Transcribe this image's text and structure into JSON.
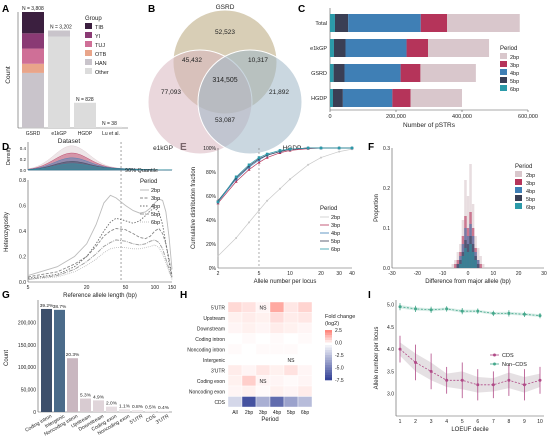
{
  "colors": {
    "tib": "#3b1f3f",
    "yi": "#8a3a74",
    "tuj": "#cf6f97",
    "otb": "#e9a58a",
    "han": "#c9c4cb",
    "other": "#dcdcdc",
    "p2": "#d9c7cc",
    "p3": "#b5345a",
    "p4": "#3f7fb5",
    "p5": "#3a3f55",
    "p6": "#2b9aa9",
    "venn_gsrd": "#b8a67a",
    "venn_e1kgp": "#d9b7bf",
    "venn_hgdp": "#9fb6c6",
    "cds": "#b04a87",
    "noncds": "#46a88c"
  },
  "panels": {
    "A": "A",
    "B": "B",
    "C": "C",
    "D": "D",
    "E": "E",
    "F": "F",
    "G": "G",
    "H": "H",
    "I": "I"
  },
  "chart_data": [
    {
      "panel": "A",
      "type": "bar",
      "categories": [
        "GSRD",
        "e1kGP",
        "HGDP",
        "Lu et al."
      ],
      "totals": [
        3808,
        3202,
        828,
        38
      ],
      "total_labels": [
        "N = 3,808",
        "N = 3,202",
        "N = 828",
        "N = 38"
      ],
      "series": [
        {
          "name": "TIB",
          "values": [
            700,
            0,
            0,
            0
          ]
        },
        {
          "name": "YI",
          "values": [
            500,
            0,
            0,
            0
          ]
        },
        {
          "name": "TUJ",
          "values": [
            500,
            0,
            0,
            0
          ]
        },
        {
          "name": "OTB",
          "values": [
            300,
            0,
            0,
            0
          ]
        },
        {
          "name": "HAN",
          "values": [
            1800,
            200,
            0,
            0
          ]
        },
        {
          "name": "Other",
          "values": [
            8,
            3002,
            828,
            38
          ]
        }
      ],
      "xlabel": "Dataset",
      "ylabel": "Count",
      "legend_title": "Group"
    },
    {
      "panel": "B",
      "type": "venn",
      "sets": [
        "GSRD",
        "e1kGP",
        "HGDP"
      ],
      "regions": [
        {
          "label": "52,523",
          "value": 52523,
          "sets": [
            "GSRD"
          ]
        },
        {
          "label": "77,093",
          "value": 77093,
          "sets": [
            "e1kGP"
          ]
        },
        {
          "label": "21,892",
          "value": 21892,
          "sets": [
            "HGDP"
          ]
        },
        {
          "label": "45,432",
          "value": 45432,
          "sets": [
            "GSRD",
            "e1kGP"
          ]
        },
        {
          "label": "10,317",
          "value": 10317,
          "sets": [
            "GSRD",
            "HGDP"
          ]
        },
        {
          "label": "53,087",
          "value": 53087,
          "sets": [
            "e1kGP",
            "HGDP"
          ]
        },
        {
          "label": "314,505",
          "value": 314505,
          "sets": [
            "GSRD",
            "e1kGP",
            "HGDP"
          ]
        }
      ]
    },
    {
      "panel": "C",
      "type": "bar",
      "orientation": "horizontal",
      "categories": [
        "Total",
        "e1kGP",
        "GSRD",
        "HGDP"
      ],
      "series": [
        {
          "name": "6bp",
          "values": [
            15000,
            12000,
            11000,
            9000
          ]
        },
        {
          "name": "5bp",
          "values": [
            40000,
            35000,
            33000,
            30000
          ]
        },
        {
          "name": "4bp",
          "values": [
            220000,
            185000,
            170000,
            150000
          ]
        },
        {
          "name": "3bp",
          "values": [
            80000,
            65000,
            60000,
            55000
          ]
        },
        {
          "name": "2bp",
          "values": [
            220000,
            185000,
            168000,
            156000
          ]
        }
      ],
      "xlabel": "Number of pSTRs",
      "xticks": [
        "0",
        "200,000",
        "400,000",
        "600,000"
      ],
      "xlim": [
        0,
        600000
      ],
      "legend_title": "Period"
    },
    {
      "panel": "D",
      "type": "line",
      "x": [
        5,
        10,
        15,
        20,
        25,
        30,
        35,
        40,
        50,
        60,
        70,
        80,
        90,
        100,
        110,
        120,
        130,
        140,
        150
      ],
      "series": [
        {
          "name": "2bp",
          "values": [
            0.05,
            0.12,
            0.2,
            0.3,
            0.45,
            0.62,
            0.68,
            0.66,
            0.6,
            0.56,
            0.54,
            0.55,
            0.58,
            0.62,
            0.65,
            0.64,
            0.55,
            0.35,
            0.1
          ]
        },
        {
          "name": "3bp",
          "values": [
            0.04,
            0.08,
            0.14,
            0.2,
            0.28,
            0.36,
            0.4,
            0.42,
            0.41,
            0.38,
            0.35,
            0.34,
            0.36,
            0.4,
            0.42,
            0.38,
            0.3,
            0.18,
            0.05
          ]
        },
        {
          "name": "4bp",
          "values": [
            0.03,
            0.06,
            0.12,
            0.2,
            0.3,
            0.4,
            0.47,
            0.5,
            0.48,
            0.46,
            0.48,
            0.52,
            0.56,
            0.58,
            0.55,
            0.45,
            0.3,
            0.15,
            0.04
          ]
        },
        {
          "name": "5bp",
          "values": [
            0.02,
            0.05,
            0.1,
            0.16,
            0.22,
            0.28,
            0.31,
            0.33,
            0.32,
            0.3,
            0.29,
            0.3,
            0.32,
            0.33,
            0.31,
            0.26,
            0.18,
            0.1,
            0.03
          ]
        },
        {
          "name": "6bp",
          "values": [
            0.02,
            0.04,
            0.08,
            0.13,
            0.18,
            0.23,
            0.26,
            0.27,
            0.27,
            0.26,
            0.26,
            0.27,
            0.28,
            0.29,
            0.27,
            0.22,
            0.15,
            0.08,
            0.02
          ]
        }
      ],
      "xlabel": "Reference allele length (bp)",
      "ylabel": "Heterozygosity",
      "top_label": "Density",
      "annotation": "90% Quantile",
      "quantile_x": 45,
      "xlim": [
        5,
        150
      ],
      "ylim": [
        0,
        0.8
      ],
      "xticks": [
        "5",
        "20",
        "50",
        "100",
        "150"
      ],
      "yticks": [
        "0.0",
        "0.2",
        "0.4",
        "0.6",
        "0.8"
      ],
      "density_ticks": [
        "0.0",
        "0.2",
        "0.4"
      ],
      "legend_title": "Period"
    },
    {
      "panel": "E",
      "type": "line",
      "x": [
        2,
        3,
        4,
        5,
        6,
        8,
        10,
        15,
        20,
        30,
        40
      ],
      "series": [
        {
          "name": "2bp",
          "values": [
            10,
            25,
            38,
            48,
            56,
            66,
            74,
            86,
            92,
            97,
            99
          ]
        },
        {
          "name": "3bp",
          "values": [
            54,
            72,
            82,
            88,
            92,
            96,
            98,
            99.5,
            100,
            100,
            100
          ]
        },
        {
          "name": "4bp",
          "values": [
            55,
            74,
            84,
            90,
            94,
            97,
            99,
            100,
            100,
            100,
            100
          ]
        },
        {
          "name": "5bp",
          "values": [
            56,
            75,
            85,
            91,
            94,
            97,
            99,
            100,
            100,
            100,
            100
          ]
        },
        {
          "name": "6bp",
          "values": [
            55,
            76,
            86,
            92,
            95,
            98,
            99,
            100,
            100,
            100,
            100
          ]
        }
      ],
      "xlabel": "Allele number per locus",
      "ylabel": "Cumulative distribution fraction",
      "vline_x": 5,
      "xlim": [
        2,
        40
      ],
      "ylim": [
        0,
        100
      ],
      "xticks": [
        "2",
        "5",
        "10",
        "20",
        "30",
        "40"
      ],
      "yticks": [
        "0%",
        "20%",
        "40%",
        "60%",
        "80%",
        "100%"
      ],
      "legend_title": "Period"
    },
    {
      "panel": "F",
      "type": "bar",
      "x": [
        -6,
        -5,
        -4,
        -3,
        -2,
        -1,
        0,
        1,
        2,
        3,
        4,
        5,
        6
      ],
      "series": [
        {
          "name": "2bp",
          "values": [
            0.01,
            0.02,
            0.04,
            0.06,
            0.12,
            0.22,
            0.18,
            0.26,
            0.16,
            0.08,
            0.05,
            0.03,
            0.01
          ]
        },
        {
          "name": "3bp",
          "values": [
            0.0,
            0.01,
            0.02,
            0.04,
            0.08,
            0.13,
            0.1,
            0.14,
            0.1,
            0.05,
            0.02,
            0.01,
            0.0
          ]
        },
        {
          "name": "4bp",
          "values": [
            0.0,
            0.0,
            0.01,
            0.03,
            0.06,
            0.1,
            0.08,
            0.11,
            0.08,
            0.04,
            0.02,
            0.0,
            0.0
          ]
        },
        {
          "name": "5bp",
          "values": [
            0.0,
            0.0,
            0.01,
            0.02,
            0.04,
            0.07,
            0.06,
            0.08,
            0.06,
            0.03,
            0.01,
            0.0,
            0.0
          ]
        },
        {
          "name": "6bp",
          "values": [
            0.0,
            0.0,
            0.0,
            0.01,
            0.03,
            0.05,
            0.04,
            0.06,
            0.04,
            0.02,
            0.0,
            0.0,
            0.0
          ]
        }
      ],
      "xlabel": "Difference from major allele (bp)",
      "ylabel": "Proportion",
      "xlim": [
        -30,
        30
      ],
      "ylim": [
        0,
        0.3
      ],
      "xticks": [
        "-30",
        "-20",
        "-10",
        "0",
        "10",
        "20",
        "30"
      ],
      "yticks": [
        "0.0",
        "0.1",
        "0.2",
        "0.3"
      ],
      "legend_title": "Period"
    },
    {
      "panel": "G",
      "type": "bar",
      "categories": [
        "Coding intron",
        "Intergenic",
        "Noncoding intron",
        "Upstream",
        "Downstream",
        "Coding exon",
        "Noncoding exon",
        "5'UTR",
        "CDS",
        "3'UTR"
      ],
      "values": [
        230000,
        228000,
        120000,
        30000,
        26000,
        12000,
        6000,
        4500,
        2800,
        2300
      ],
      "value_labels": [
        "39.2%",
        "38.7%",
        "20.3%",
        "5.3%",
        "4.9%",
        "2.0%",
        "1.1%",
        "0.8%",
        "0.5%",
        "0.4%"
      ],
      "ylabel": "Count",
      "ylim": [
        0,
        250000
      ],
      "yticks": [
        "0",
        "50,000",
        "100,000",
        "150,000",
        "200,000"
      ]
    },
    {
      "panel": "H",
      "type": "heatmap",
      "rows": [
        "5'UTR",
        "Upstream",
        "Downstream",
        "Coding intron",
        "Noncoding intron",
        "Intergenic",
        "3'UTR",
        "Coding exon",
        "Noncoding exon",
        "CDS"
      ],
      "cols": [
        "All",
        "2bp",
        "3bp",
        "4bp",
        "5bp",
        "6bp"
      ],
      "values": [
        [
          0.8,
          0.6,
          0.2,
          1.8,
          0.5,
          0.9
        ],
        [
          0.3,
          0.4,
          0.3,
          0.7,
          0.4,
          0.5
        ],
        [
          0.2,
          0.3,
          0.2,
          0.4,
          0.3,
          0.2
        ],
        [
          0.0,
          0.1,
          0.0,
          0.1,
          0.0,
          0.1
        ],
        [
          0.1,
          0.0,
          0.1,
          0.1,
          0.1,
          0.0
        ],
        [
          0.0,
          0.0,
          0.0,
          0.0,
          0.0,
          0.0
        ],
        [
          0.4,
          0.2,
          0.5,
          0.3,
          0.6,
          0.2
        ],
        [
          0.3,
          1.0,
          0.2,
          0.2,
          0.1,
          0.2
        ],
        [
          0.2,
          0.3,
          0.1,
          0.3,
          0.2,
          0.4
        ],
        [
          -1.5,
          -6.5,
          -3.0,
          -5.5,
          -3.5,
          -2.5
        ]
      ],
      "ns_cells": [
        [
          0,
          2
        ],
        [
          5,
          4
        ],
        [
          7,
          2
        ]
      ],
      "ns_label": "NS",
      "xlabel": "Period",
      "legend_title": "Fold change\n(log2)",
      "legend_ticks": [
        "2.5",
        "0.0",
        "-2.5",
        "-5.0",
        "-7.5"
      ],
      "range": [
        -7.5,
        2.5
      ]
    },
    {
      "panel": "I",
      "type": "line",
      "x": [
        1,
        2,
        3,
        4,
        5,
        6,
        7,
        8,
        9,
        10
      ],
      "series": [
        {
          "name": "CDS",
          "values": [
            4.0,
            3.7,
            3.5,
            3.3,
            3.3,
            3.2,
            3.2,
            3.3,
            3.2,
            3.3
          ],
          "err": [
            0.3,
            0.4,
            0.4,
            0.3,
            0.4,
            0.35,
            0.3,
            0.35,
            0.35,
            0.3
          ]
        },
        {
          "name": "Non−CDS",
          "values": [
            4.95,
            4.9,
            4.88,
            4.9,
            4.85,
            4.85,
            4.8,
            4.8,
            4.78,
            4.75
          ],
          "err": [
            0.08,
            0.07,
            0.07,
            0.06,
            0.07,
            0.06,
            0.06,
            0.07,
            0.06,
            0.06
          ]
        }
      ],
      "xlabel": "LOEUF decile",
      "ylabel": "Allele number per locus",
      "xlim": [
        1,
        10
      ],
      "ylim": [
        2.5,
        5.1
      ],
      "xticks": [
        "1",
        "2",
        "3",
        "4",
        "5",
        "6",
        "7",
        "8",
        "9",
        "10"
      ],
      "yticks": [
        "3.0",
        "3.5",
        "4.0",
        "4.5",
        "5.0"
      ]
    }
  ]
}
